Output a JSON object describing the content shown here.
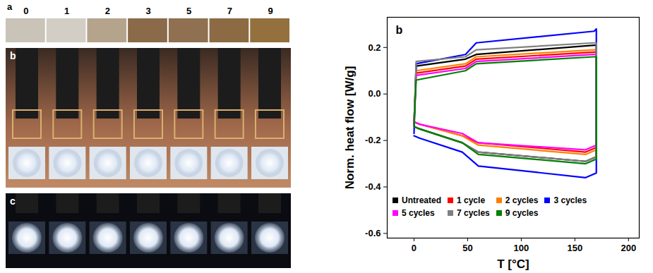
{
  "photos": {
    "a": {
      "label": "a",
      "samples": [
        "0",
        "1",
        "2",
        "3",
        "5",
        "7",
        "9"
      ],
      "colors": [
        "#c9c3b8",
        "#d2cec6",
        "#b5a48c",
        "#8a6a48",
        "#8f7050",
        "#8b6a44",
        "#94703f"
      ]
    },
    "b": {
      "label": "b"
    },
    "c": {
      "label": "c"
    }
  },
  "chart_data": {
    "type": "line",
    "panel_label": "b",
    "x_label": "T [°C]",
    "y_label": "Norm. heat flow [W/g]",
    "x": [
      0,
      2,
      48,
      58,
      168,
      170,
      170,
      160,
      60,
      45,
      5,
      0
    ],
    "series": [
      {
        "name": "Untreated",
        "color": "#000000",
        "values": [
          -0.13,
          0.12,
          0.15,
          0.17,
          0.21,
          0.21,
          -0.27,
          -0.29,
          -0.25,
          -0.21,
          -0.15,
          -0.14
        ]
      },
      {
        "name": "1 cycle",
        "color": "#ff0000",
        "values": [
          -0.12,
          0.09,
          0.12,
          0.15,
          0.18,
          0.18,
          -0.23,
          -0.25,
          -0.21,
          -0.18,
          -0.13,
          -0.12
        ]
      },
      {
        "name": "2 cycles",
        "color": "#ff8000",
        "values": [
          -0.12,
          0.1,
          0.13,
          0.16,
          0.19,
          0.19,
          -0.24,
          -0.26,
          -0.22,
          -0.18,
          -0.13,
          -0.12
        ]
      },
      {
        "name": "3 cycles",
        "color": "#0000ff",
        "values": [
          -0.17,
          0.13,
          0.17,
          0.22,
          0.27,
          0.28,
          -0.34,
          -0.36,
          -0.31,
          -0.25,
          -0.19,
          -0.18
        ]
      },
      {
        "name": "5 cycles",
        "color": "#ff00ff",
        "values": [
          -0.12,
          0.08,
          0.11,
          0.14,
          0.17,
          0.17,
          -0.22,
          -0.24,
          -0.21,
          -0.17,
          -0.13,
          -0.12
        ]
      },
      {
        "name": "7 cycles",
        "color": "#808080",
        "values": [
          -0.13,
          0.14,
          0.16,
          0.19,
          0.22,
          0.22,
          -0.27,
          -0.29,
          -0.25,
          -0.21,
          -0.15,
          -0.14
        ]
      },
      {
        "name": "9 cycles",
        "color": "#008000",
        "values": [
          -0.14,
          0.06,
          0.1,
          0.13,
          0.16,
          0.16,
          -0.28,
          -0.3,
          -0.26,
          -0.21,
          -0.15,
          -0.14
        ]
      }
    ],
    "xlim": [
      -25,
      210
    ],
    "ylim": [
      -0.62,
      0.33
    ],
    "xticks": [
      0,
      50,
      100,
      150,
      200
    ],
    "yticks": [
      0.2,
      {
        "value": 0,
        "label": "0.0"
      },
      -0.2,
      -0.4,
      -0.6
    ],
    "marker": "square",
    "line_style": "solid",
    "legend": "bottom",
    "grid": false
  }
}
